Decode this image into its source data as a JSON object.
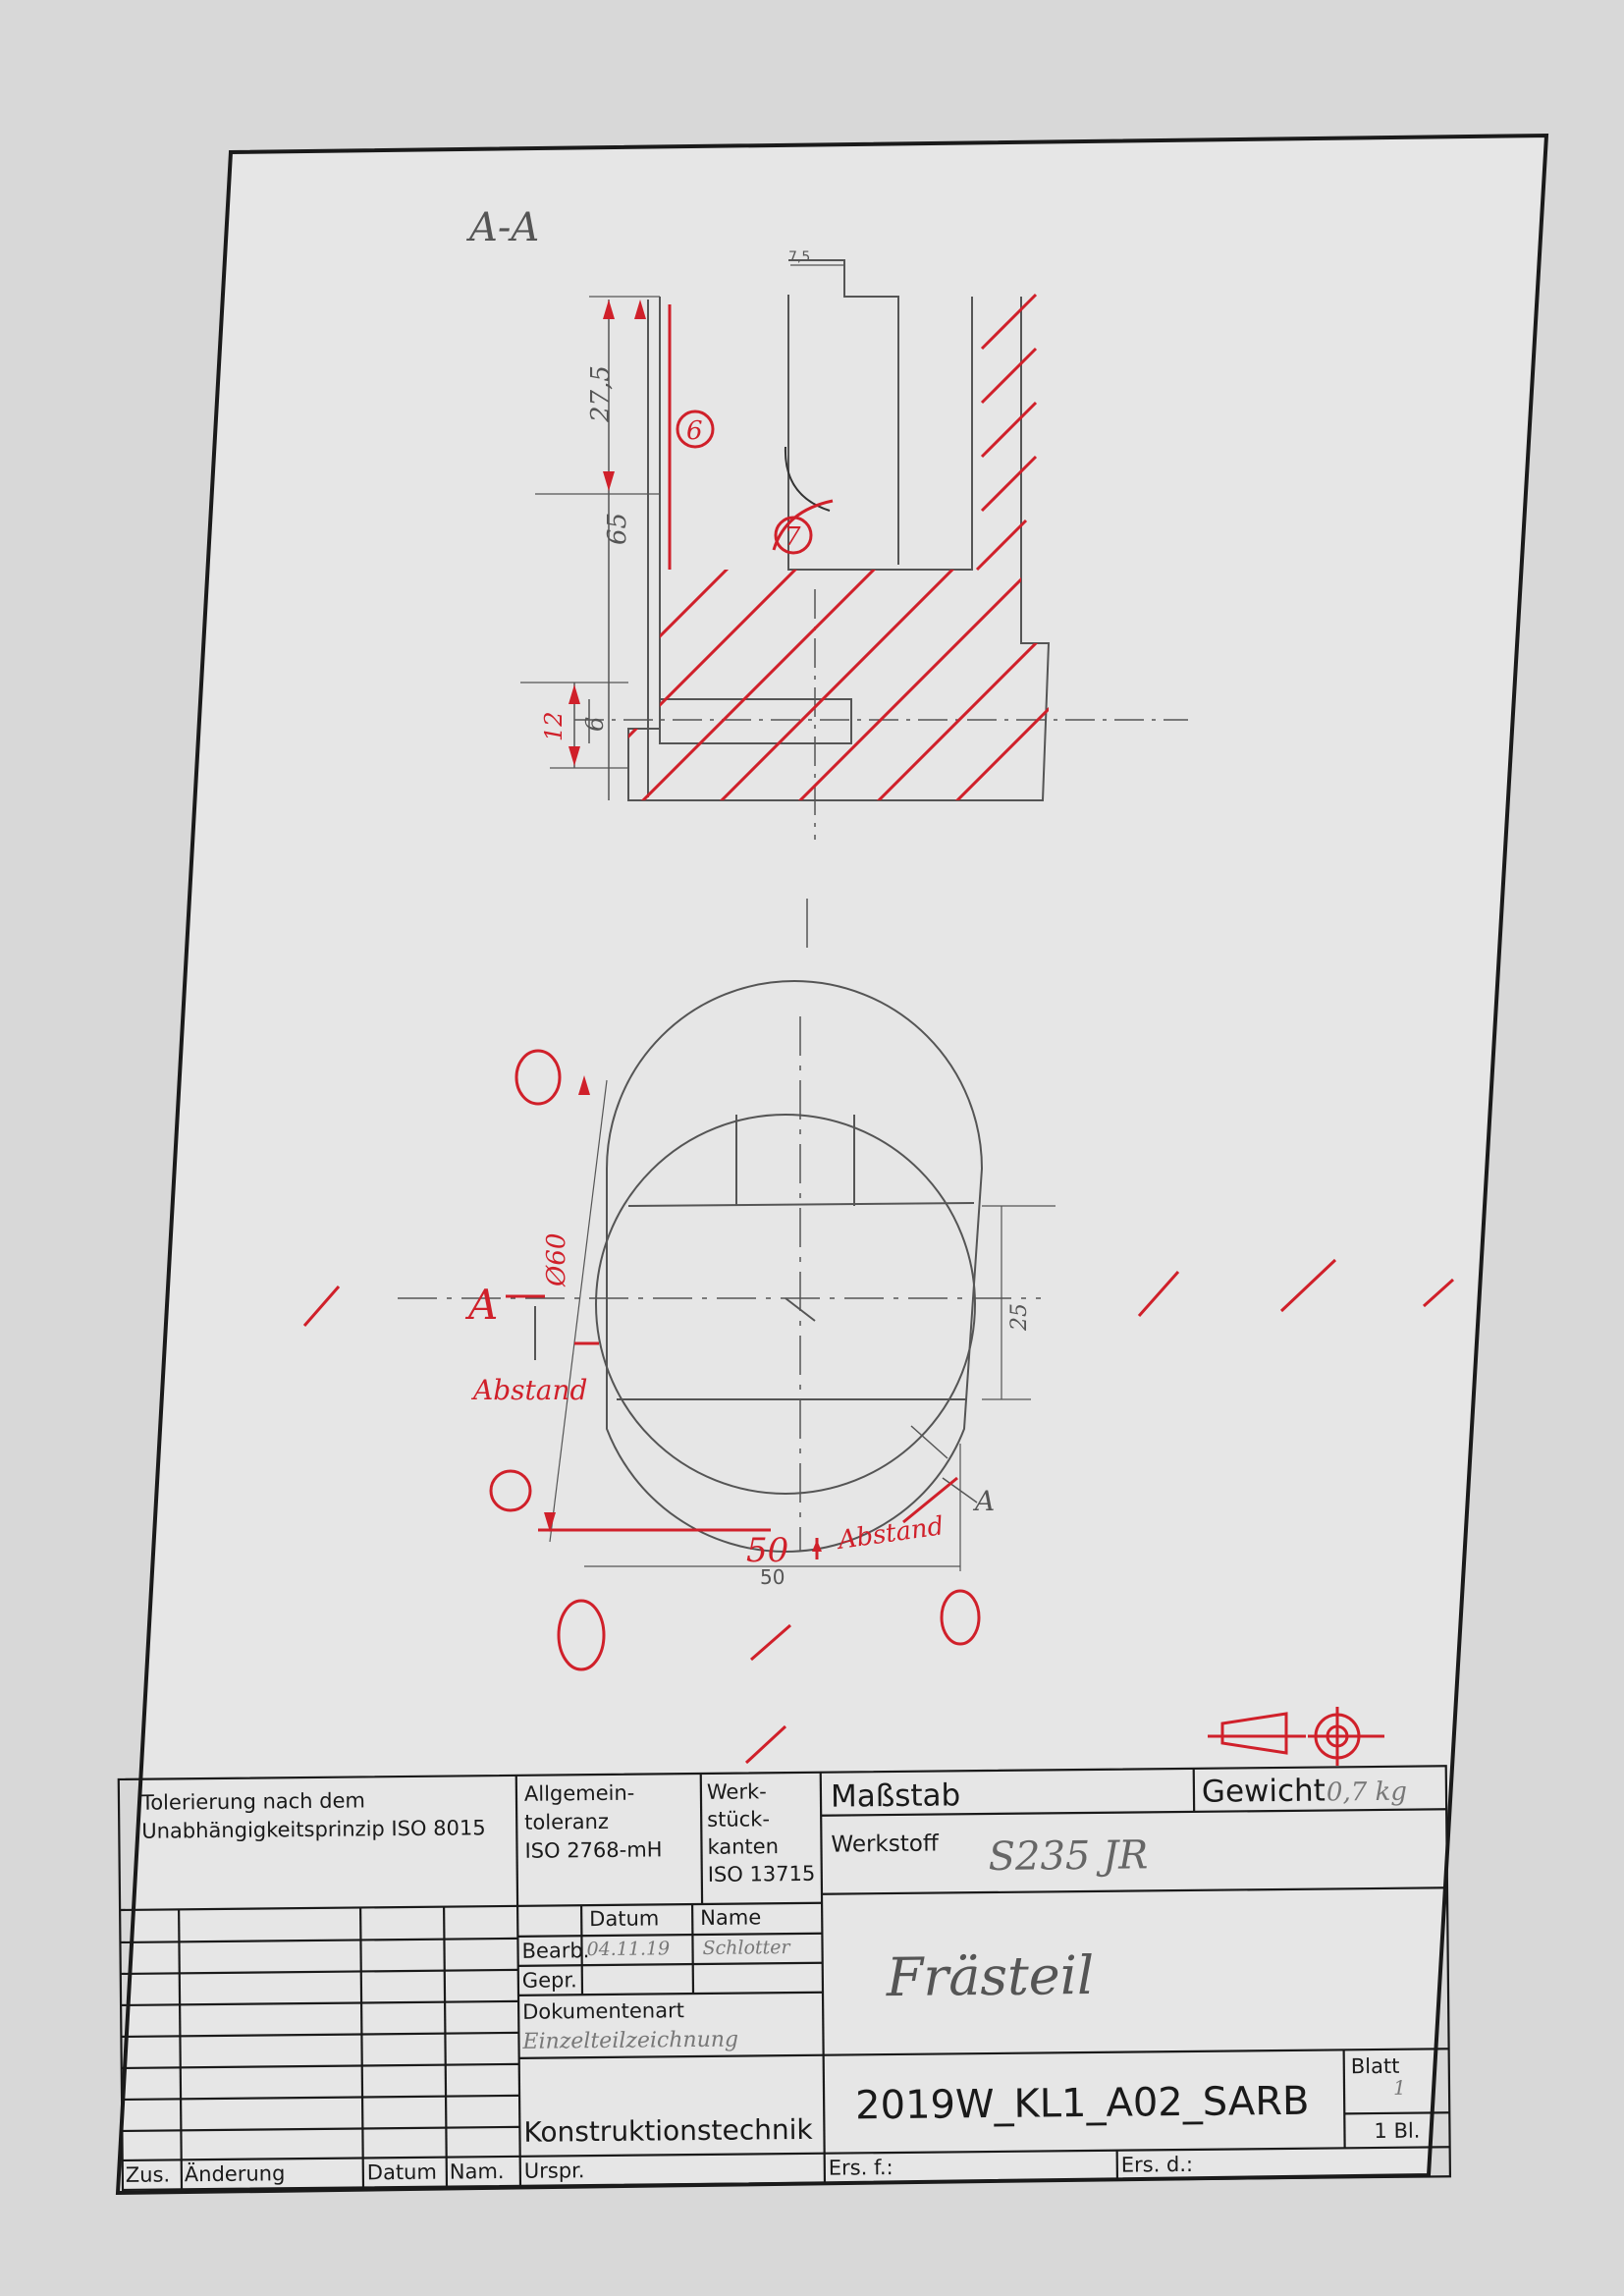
{
  "colors": {
    "background": "#d8d8d8",
    "paper": "#e6e6e6",
    "ink": "#1a1a1a",
    "pencil": "#555555",
    "red": "#d0202a"
  },
  "views": {
    "section_label": "A-A",
    "section_marker": "A",
    "section_marker_2": "A"
  },
  "dimensions": {
    "d_top_width": "7,5",
    "d_depth": "27,5",
    "d_height": "65",
    "d_12": "12",
    "d_6": "6",
    "d_diameter": "Ø60",
    "d_25": "25",
    "d_50_pencil": "50",
    "d_50_red": "50"
  },
  "annotations": {
    "item_6": "6",
    "item_7": "7",
    "abstand_left": "Abstand",
    "abstand_bottom": "Abstand",
    "zero_1": "0",
    "zero_2": "0",
    "zero_3": "0",
    "zero_4": "0"
  },
  "title_block": {
    "tolerierung": [
      "Tolerierung nach dem",
      "Unabhängigkeitsprinzip ISO 8015"
    ],
    "allgemein": [
      "Allgemein-",
      "toleranz",
      "ISO 2768-mH"
    ],
    "werkstueck": [
      "Werk-",
      "stück-",
      "kanten",
      "ISO 13715"
    ],
    "massstab_label": "Maßstab",
    "gewicht_label": "Gewicht",
    "gewicht_value": "0,7 kg",
    "werkstoff_label": "Werkstoff",
    "werkstoff_value": "S235 JR",
    "datum_header": "Datum",
    "name_header": "Name",
    "bearb_label": "Bearb.",
    "bearb_datum": "04.11.19",
    "bearb_name": "Schlotter",
    "gepr_label": "Gepr.",
    "dokumentenart_label": "Dokumentenart",
    "dokumentenart_value": "Einzelteilzeichnung",
    "title": "Frästeil",
    "dept": "Konstruktionstechnik",
    "drawing_number": "2019W_KL1_A02_SARB",
    "blatt_label": "Blatt",
    "blatt_value": "1",
    "bl_value": "1 Bl.",
    "zus_label": "Zus.",
    "aenderung_label": "Änderung",
    "datum_label": "Datum",
    "nam_label": "Nam.",
    "urspr_label": "Urspr.",
    "ers_f_label": "Ers. f.:",
    "ers_d_label": "Ers. d.:"
  }
}
